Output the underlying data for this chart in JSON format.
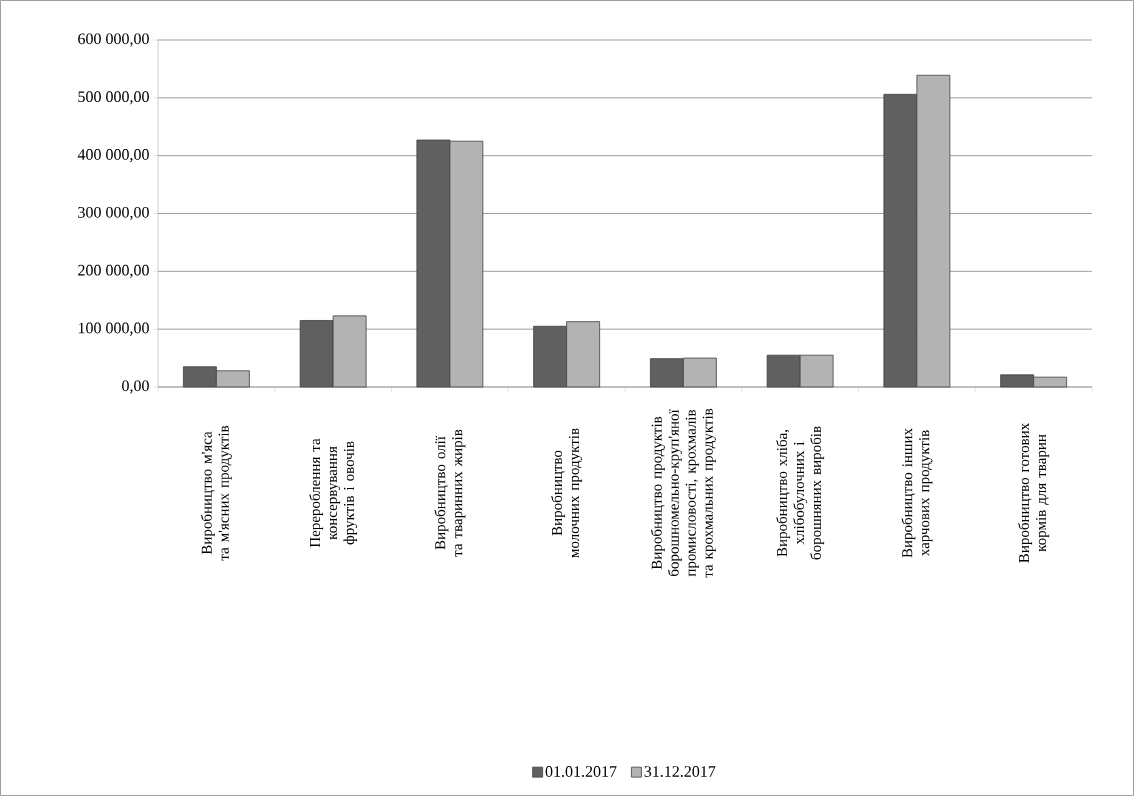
{
  "chart_data": {
    "type": "bar",
    "categories": [
      "Виробництво м'яса та м'ясних продуктів",
      "Перероблення та консервування фруктів і овочів",
      "Виробництво олії та тваринних жирів",
      "Виробництво молочних продуктів",
      "Виробництво продуктів борошномельно-круп'яної промисловості, крохмалів та крохмальних продуктів",
      "Виробництво хліба, хлібобулочних і борошняних виробів",
      "Виробництво інших харчових продуктів",
      "Виробництво готових кормів для тварин"
    ],
    "series": [
      {
        "name": "01.01.2017",
        "color": "#606060",
        "values": [
          35000,
          115000,
          427000,
          105000,
          49000,
          55000,
          506000,
          21000
        ]
      },
      {
        "name": "31.12.2017",
        "color": "#b3b3b3",
        "values": [
          28000,
          123000,
          425000,
          113000,
          50000,
          55000,
          539000,
          17000
        ]
      }
    ],
    "ylim": [
      0,
      600000
    ],
    "yticks": [
      {
        "value": 0,
        "label": "0,00"
      },
      {
        "value": 100000,
        "label": "100 000,00"
      },
      {
        "value": 200000,
        "label": "200 000,00"
      },
      {
        "value": 300000,
        "label": "300 000,00"
      },
      {
        "value": 400000,
        "label": "400 000,00"
      },
      {
        "value": 500000,
        "label": "500 000,00"
      },
      {
        "value": 600000,
        "label": "600 000,00"
      }
    ],
    "grid": "y",
    "legend": "bottom"
  }
}
